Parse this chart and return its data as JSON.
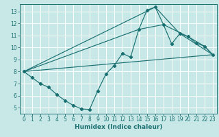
{
  "xlabel": "Humidex (Indice chaleur)",
  "bg_color": "#c8e8e8",
  "grid_color": "#ffffff",
  "line_color": "#1a7070",
  "xlim": [
    -0.5,
    23.5
  ],
  "ylim": [
    4.5,
    13.6
  ],
  "xticks": [
    0,
    1,
    2,
    3,
    4,
    5,
    6,
    7,
    8,
    9,
    10,
    11,
    12,
    13,
    14,
    15,
    16,
    17,
    18,
    19,
    20,
    21,
    22,
    23
  ],
  "yticks": [
    5,
    6,
    7,
    8,
    9,
    10,
    11,
    12,
    13
  ],
  "series0_x": [
    0,
    1,
    2,
    3,
    4,
    5,
    6,
    7,
    8,
    9,
    10,
    11,
    12,
    13,
    14,
    15,
    16,
    17,
    18,
    19,
    20,
    21,
    22,
    23
  ],
  "series0_y": [
    8.0,
    7.5,
    7.0,
    6.7,
    6.1,
    5.6,
    5.2,
    4.9,
    4.85,
    6.4,
    7.8,
    8.5,
    9.5,
    9.2,
    11.5,
    13.1,
    13.35,
    11.9,
    10.3,
    11.15,
    10.9,
    10.35,
    10.1,
    9.4
  ],
  "series1_x": [
    0,
    23
  ],
  "series1_y": [
    8.0,
    9.4
  ],
  "series2_x": [
    0,
    16,
    19,
    23
  ],
  "series2_y": [
    8.0,
    13.35,
    11.15,
    9.4
  ],
  "series3_x": [
    0,
    14,
    17,
    20,
    22,
    23
  ],
  "series3_y": [
    8.0,
    11.5,
    11.9,
    10.9,
    10.1,
    9.4
  ]
}
